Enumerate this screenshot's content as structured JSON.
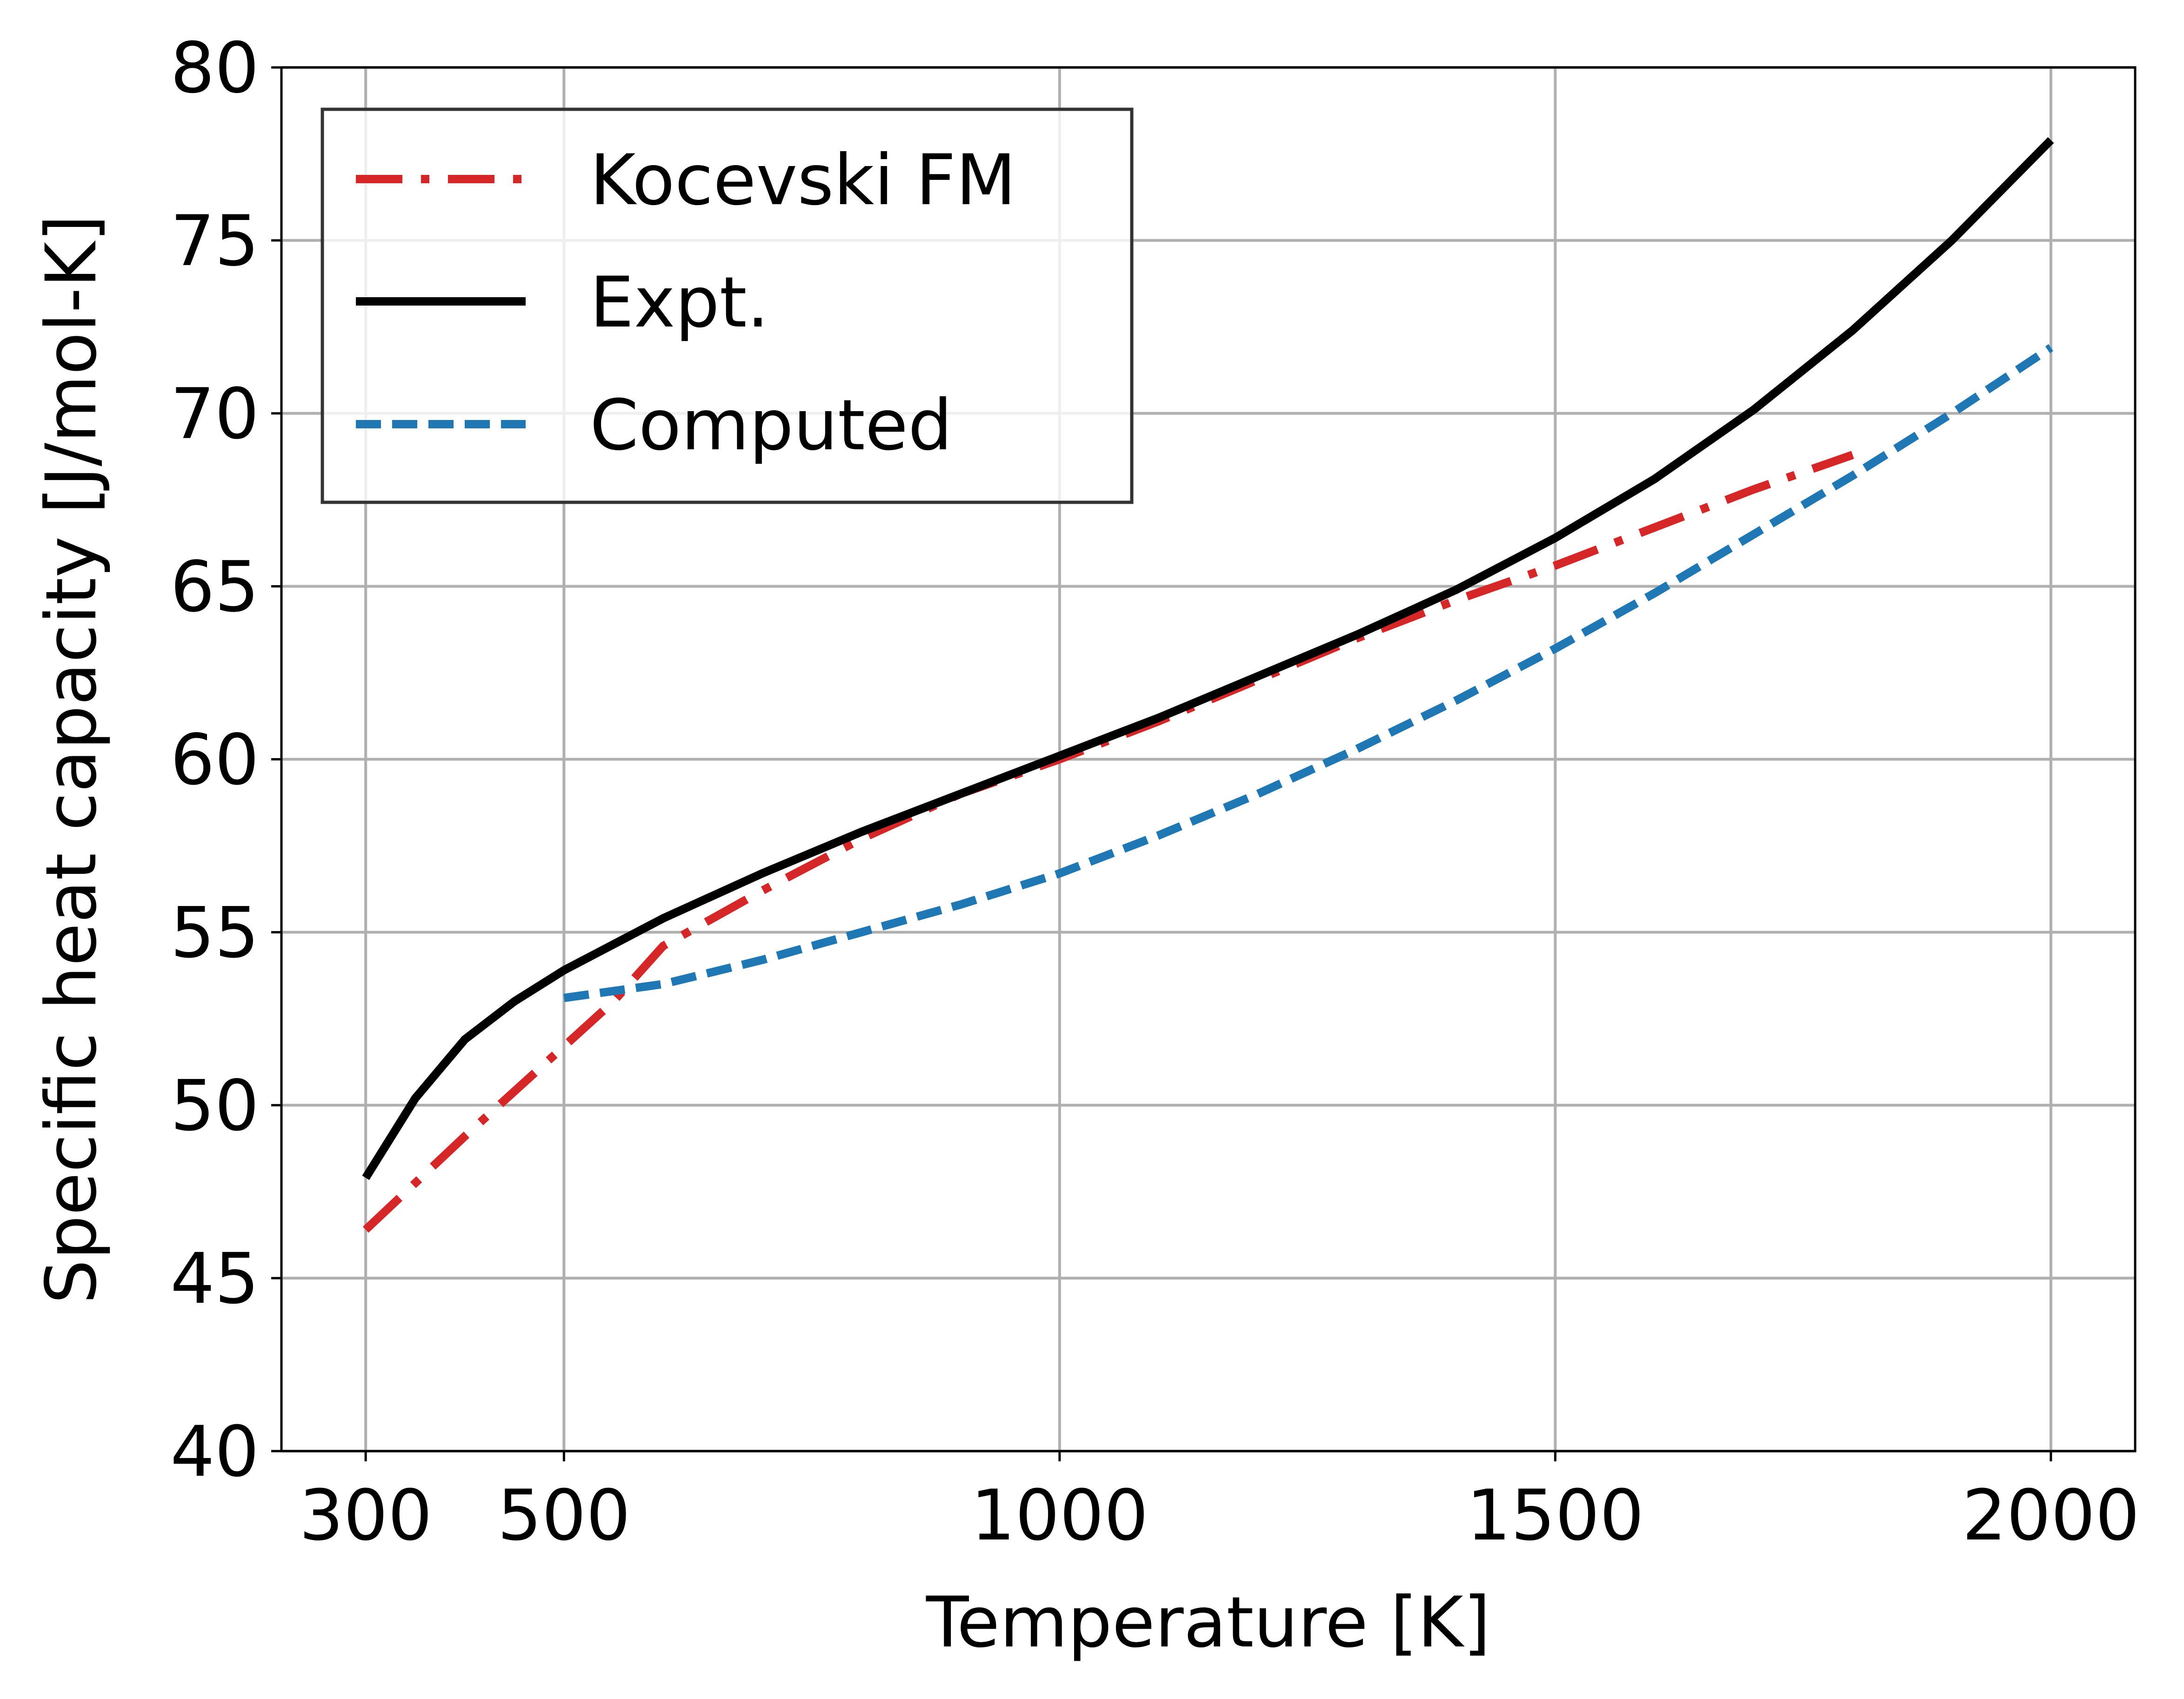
{
  "chart_data": {
    "type": "line",
    "xlabel": "Temperature [K]",
    "ylabel": "Specific heat capacity [J/mol-K]",
    "xlim": [
      215,
      2085
    ],
    "ylim": [
      40,
      80
    ],
    "xticks": [
      300,
      500,
      1000,
      1500,
      2000
    ],
    "yticks": [
      40,
      45,
      50,
      55,
      60,
      65,
      70,
      75,
      80
    ],
    "grid": true,
    "legend_position": "top-left",
    "series": [
      {
        "name": "Kocevski FM",
        "color": "#d62728",
        "dash": "dash-dot",
        "x": [
          300,
          400,
          500,
          550,
          600,
          700,
          800,
          900,
          1000,
          1100,
          1200,
          1300,
          1400,
          1500,
          1600,
          1700,
          1800
        ],
        "y": [
          46.4,
          49.1,
          51.7,
          53.0,
          54.6,
          56.2,
          57.7,
          59.0,
          60.0,
          61.1,
          62.3,
          63.5,
          64.6,
          65.6,
          66.7,
          67.8,
          68.8
        ]
      },
      {
        "name": "Expt.",
        "color": "#000000",
        "dash": "solid",
        "x": [
          300,
          350,
          400,
          450,
          500,
          600,
          700,
          800,
          900,
          1000,
          1100,
          1200,
          1300,
          1400,
          1500,
          1600,
          1700,
          1800,
          1900,
          2000
        ],
        "y": [
          47.9,
          50.2,
          51.9,
          53.0,
          53.9,
          55.4,
          56.7,
          57.9,
          59.0,
          60.1,
          61.2,
          62.4,
          63.6,
          64.9,
          66.4,
          68.1,
          70.1,
          72.4,
          75.0,
          77.9
        ]
      },
      {
        "name": "Computed",
        "color": "#1f77b4",
        "dash": "dashed",
        "x": [
          500,
          600,
          700,
          800,
          900,
          1000,
          1100,
          1200,
          1300,
          1400,
          1500,
          1600,
          1700,
          1800,
          1900,
          2000
        ],
        "y": [
          53.1,
          53.5,
          54.2,
          55.0,
          55.8,
          56.7,
          57.8,
          59.0,
          60.3,
          61.7,
          63.2,
          64.8,
          66.5,
          68.2,
          70.0,
          71.9
        ]
      }
    ]
  }
}
